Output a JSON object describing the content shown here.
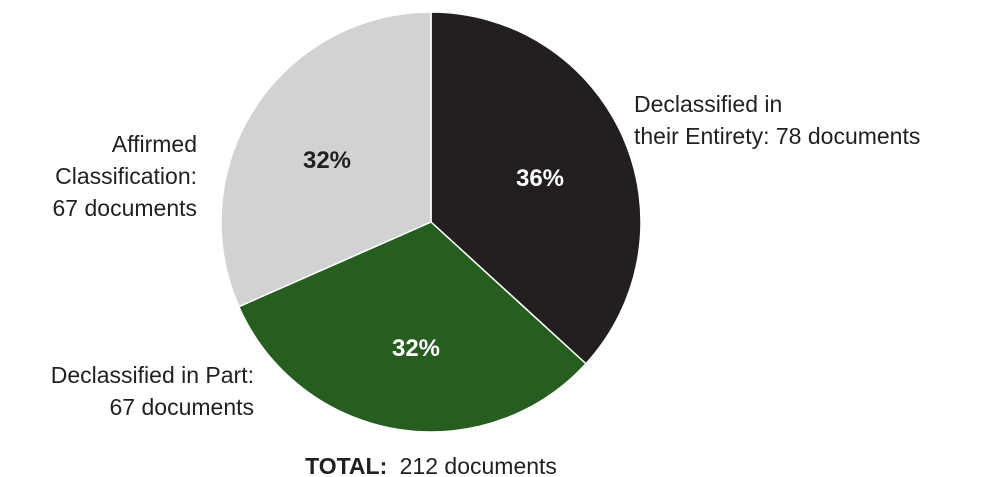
{
  "chart_data": {
    "type": "pie",
    "total": {
      "label": "TOTAL:",
      "value_text": "212 documents",
      "value": 212
    },
    "slices": [
      {
        "category": "Declassified in their Entirety",
        "label_lines": [
          "Declassified in",
          "their Entirety: 78 documents"
        ],
        "count": 78,
        "percent": 36,
        "percent_label": "36%",
        "color": "#231f20",
        "percent_text_color": "#ffffff"
      },
      {
        "category": "Declassified in Part",
        "label_lines": [
          "Declassified in Part:",
          "67 documents"
        ],
        "count": 67,
        "percent": 32,
        "percent_label": "32%",
        "color": "#255e1e",
        "percent_text_color": "#ffffff"
      },
      {
        "category": "Affirmed Classification",
        "label_lines": [
          "Affirmed",
          "Classification:",
          "67 documents"
        ],
        "count": 67,
        "percent": 32,
        "percent_label": "32%",
        "color": "#d1d2d4",
        "percent_text_color": "#231f20"
      }
    ]
  }
}
